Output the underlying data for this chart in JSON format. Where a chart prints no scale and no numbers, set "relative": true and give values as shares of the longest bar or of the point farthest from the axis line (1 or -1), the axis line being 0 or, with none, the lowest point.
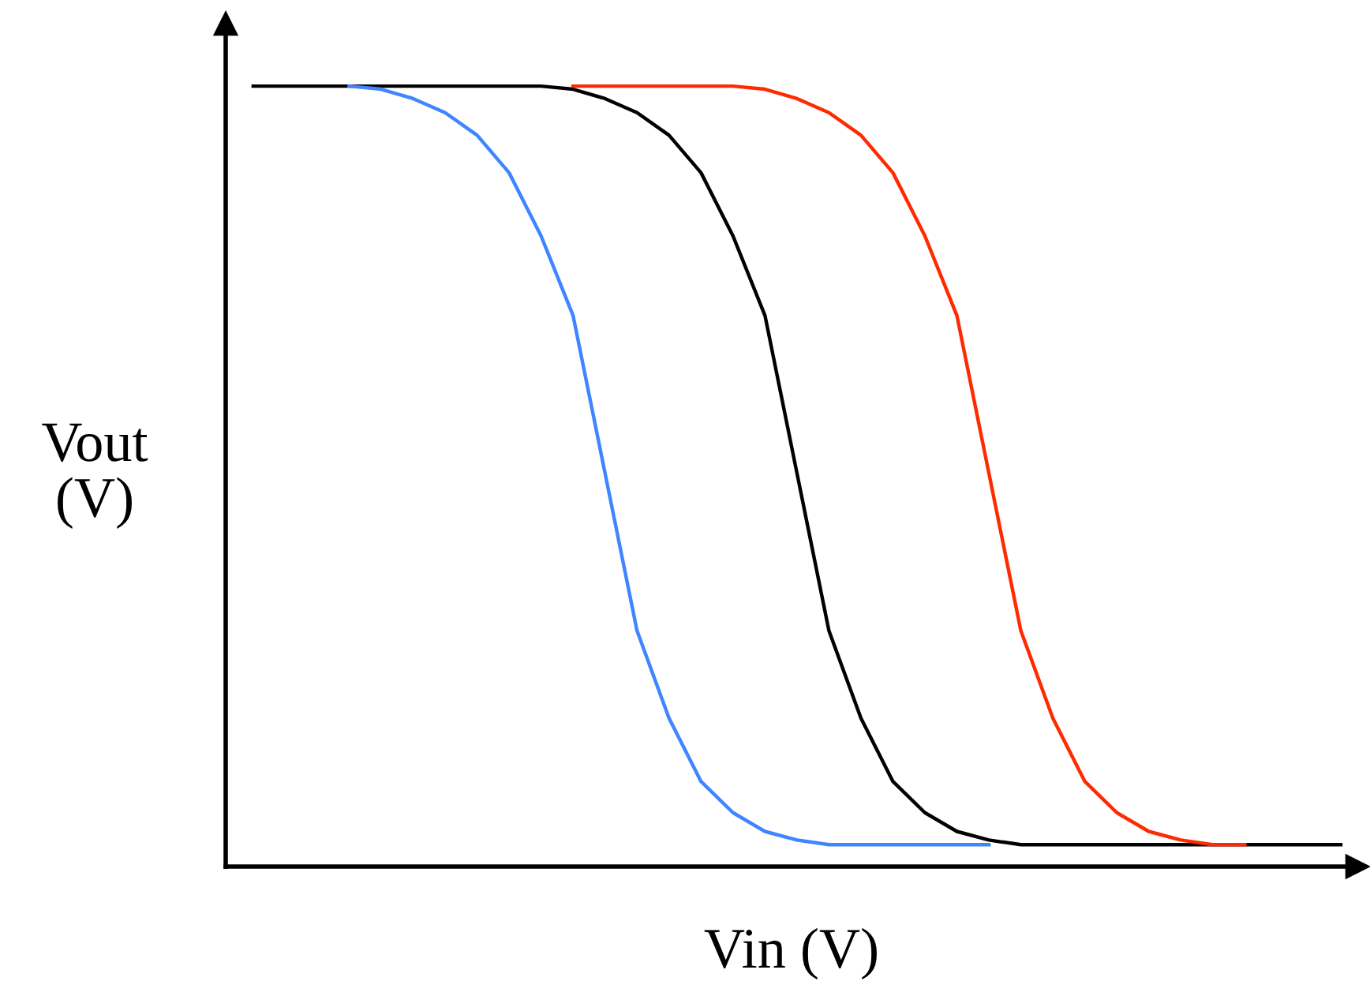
{
  "chart_data": {
    "type": "line",
    "relative": true,
    "xlabel": "Vin (V)",
    "ylabel": "Vout\n(V)",
    "grid": false,
    "marker": "none",
    "line_style": "solid",
    "tick_labels": false,
    "categories": [
      null,
      null,
      null,
      null,
      null,
      null,
      null,
      null,
      null,
      null,
      null,
      null,
      null,
      null,
      null,
      null,
      null,
      null,
      null,
      null,
      null,
      null,
      null,
      null,
      null,
      null,
      null,
      null,
      null,
      null,
      null,
      null,
      null,
      null,
      null
    ],
    "series": [
      {
        "color": "#000000",
        "values": [
          1.0,
          1.0,
          1.0,
          1.0,
          1.0,
          1.0,
          1.0,
          1.0,
          1.0,
          1.0,
          0.996,
          0.984,
          0.966,
          0.937,
          0.889,
          0.808,
          0.706,
          0.504,
          0.302,
          0.19,
          0.109,
          0.069,
          0.045,
          0.034,
          0.028,
          0.028,
          0.028,
          0.028,
          0.028,
          0.028,
          0.028,
          0.028,
          0.028,
          0.028,
          0.028
        ]
      },
      {
        "color": "#ff2a00",
        "values": [
          null,
          null,
          null,
          null,
          null,
          null,
          null,
          null,
          null,
          null,
          1.0,
          1.0,
          1.0,
          1.0,
          1.0,
          1.0,
          0.996,
          0.984,
          0.966,
          0.937,
          0.889,
          0.808,
          0.706,
          0.504,
          0.302,
          0.19,
          0.109,
          0.069,
          0.045,
          0.034,
          0.028,
          0.028,
          null,
          null,
          null
        ]
      },
      {
        "color": "#3f85ff",
        "values": [
          null,
          null,
          null,
          1.0,
          0.996,
          0.984,
          0.966,
          0.937,
          0.889,
          0.808,
          0.706,
          0.504,
          0.302,
          0.19,
          0.109,
          0.069,
          0.045,
          0.034,
          0.028,
          0.028,
          0.028,
          0.028,
          0.028,
          0.028,
          null,
          null,
          null,
          null,
          null,
          null,
          null,
          null,
          null,
          null,
          null
        ]
      }
    ]
  }
}
